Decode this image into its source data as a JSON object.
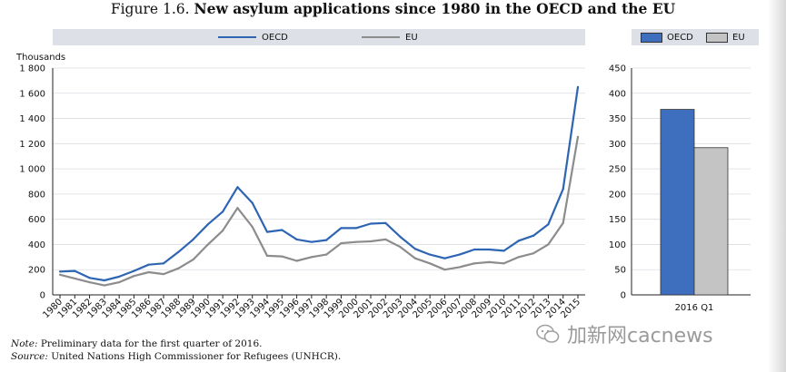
{
  "figure": {
    "number": "Figure 1.6.",
    "title": "New asylum applications since 1980 in the OECD and the EU"
  },
  "colors": {
    "oecd": "#2e65b3",
    "eu": "#8c8c8c",
    "oecd_bar": "#3d6fbe",
    "eu_bar": "#c4c4c4",
    "band": "#dde0e6"
  },
  "chart_data": [
    {
      "type": "line",
      "ylabel": "Thousands",
      "ylim": [
        0,
        1800
      ],
      "yticks": [
        0,
        200,
        400,
        600,
        800,
        1000,
        1200,
        1400,
        1600,
        1800
      ],
      "ytick_labels": [
        "0",
        "200",
        "400",
        "600",
        "800",
        "1 000",
        "1 200",
        "1 400",
        "1 600",
        "1 800"
      ],
      "x": [
        "1980",
        "1981",
        "1982",
        "1983",
        "1984",
        "1985",
        "1986",
        "1987",
        "1988",
        "1989",
        "1990",
        "1991",
        "1992",
        "1993",
        "1994",
        "1995",
        "1996",
        "1997",
        "1998",
        "1999",
        "2000",
        "2001",
        "2002",
        "2003",
        "2004",
        "2005",
        "2006",
        "2007",
        "2008",
        "2009",
        "2010",
        "2011",
        "2012",
        "2013",
        "2014",
        "2015"
      ],
      "series": [
        {
          "name": "OECD",
          "values": [
            185,
            190,
            135,
            115,
            145,
            190,
            240,
            250,
            340,
            440,
            560,
            660,
            855,
            730,
            500,
            515,
            440,
            420,
            435,
            530,
            530,
            565,
            570,
            460,
            365,
            320,
            290,
            320,
            360,
            360,
            350,
            430,
            470,
            560,
            840,
            1650
          ]
        },
        {
          "name": "EU",
          "values": [
            160,
            130,
            100,
            75,
            100,
            150,
            180,
            165,
            210,
            280,
            400,
            510,
            690,
            540,
            310,
            305,
            270,
            300,
            320,
            410,
            420,
            425,
            440,
            380,
            290,
            250,
            200,
            220,
            250,
            260,
            250,
            300,
            330,
            400,
            570,
            1255
          ]
        }
      ],
      "legend": "top"
    },
    {
      "type": "bar",
      "ylim": [
        0,
        450
      ],
      "yticks": [
        0,
        50,
        100,
        150,
        200,
        250,
        300,
        350,
        400,
        450
      ],
      "categories": [
        "2016 Q1"
      ],
      "series": [
        {
          "name": "OECD",
          "values": [
            368
          ]
        },
        {
          "name": "EU",
          "values": [
            292
          ]
        }
      ],
      "legend": "top"
    }
  ],
  "notes": {
    "note_label": "Note:",
    "note_text": "Preliminary data for the first quarter of 2016.",
    "source_label": "Source:",
    "source_text": "United Nations High Commissioner for Refugees (UNHCR)."
  },
  "watermark": {
    "text": "加新网cacnews"
  }
}
